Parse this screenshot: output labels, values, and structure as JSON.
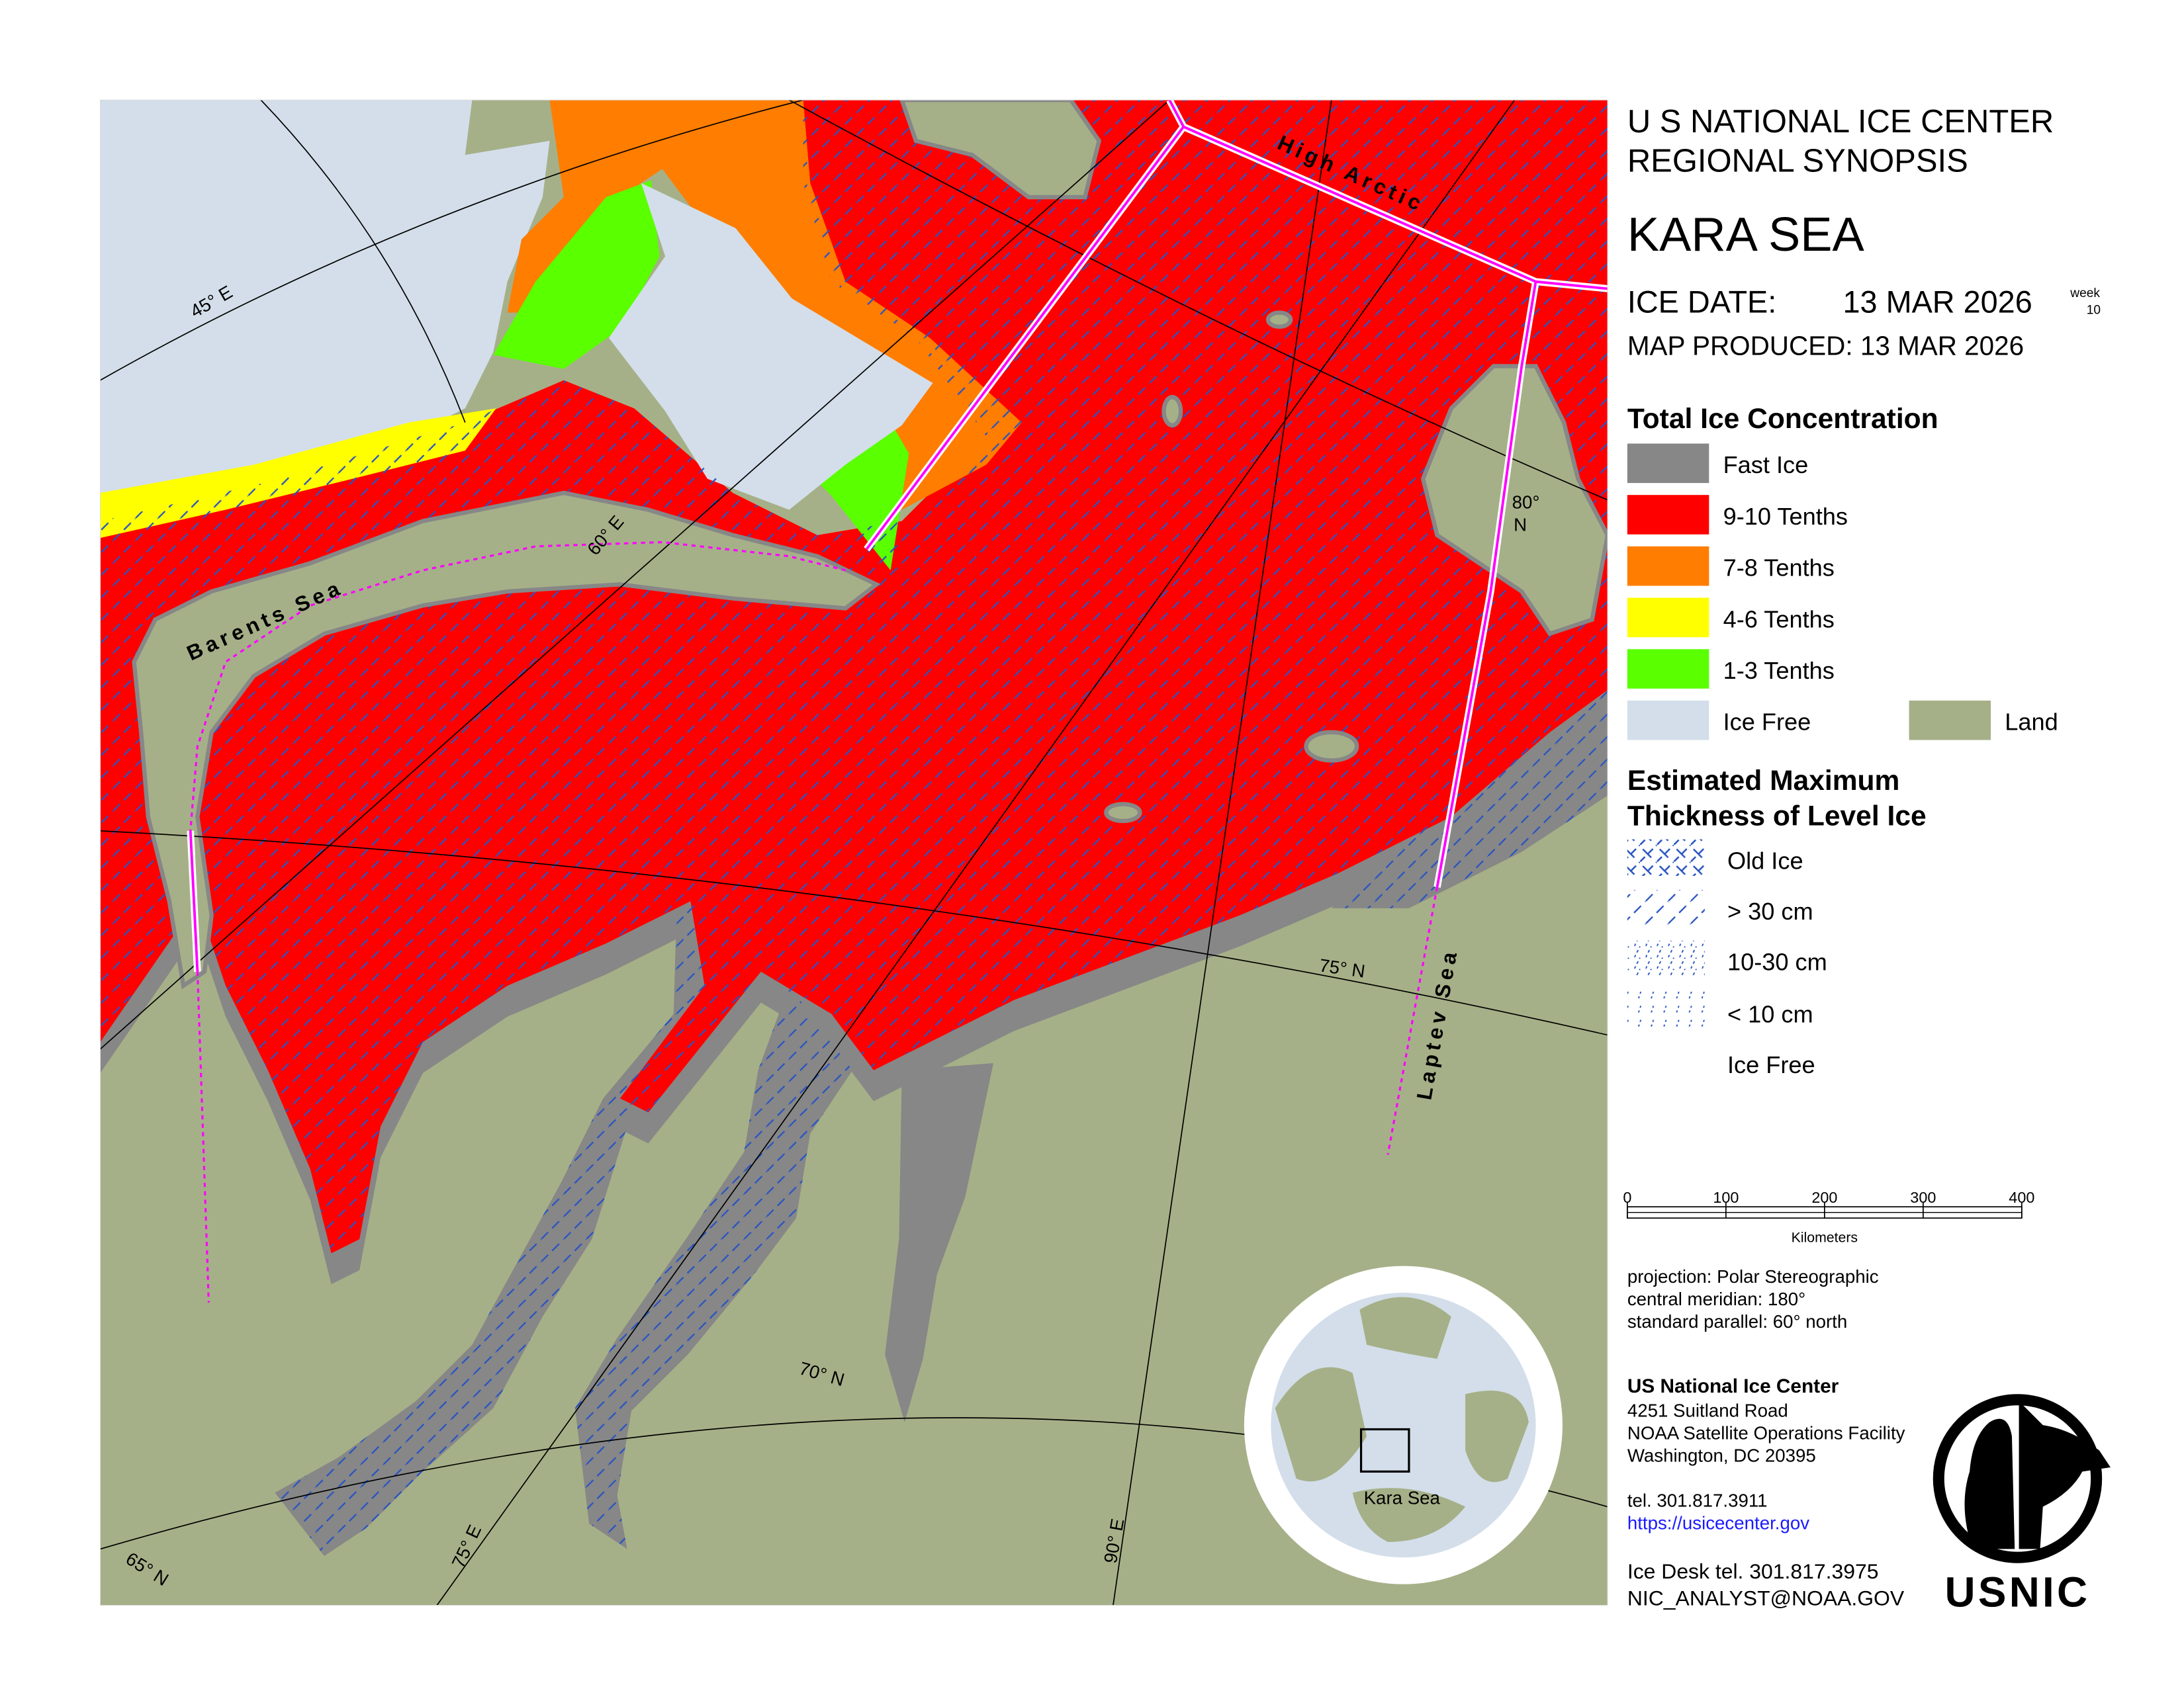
{
  "header": {
    "line1": "U S NATIONAL ICE CENTER",
    "line2": "REGIONAL SYNOPSIS",
    "region": "KARA SEA",
    "ice_date_label": "ICE DATE:",
    "ice_date": "13 MAR 2026",
    "week_label": "week",
    "week": 10,
    "map_produced": "MAP PRODUCED:  13 MAR 2026"
  },
  "concentration_legend": {
    "title": "Total Ice Concentration",
    "items": [
      {
        "label": "Fast Ice",
        "color": "#878787"
      },
      {
        "label": "9-10 Tenths",
        "color": "#ff0000"
      },
      {
        "label": "7-8 Tenths",
        "color": "#ff7d00"
      },
      {
        "label": "4-6 Tenths",
        "color": "#ffff00"
      },
      {
        "label": "1-3 Tenths",
        "color": "#5aff00"
      },
      {
        "label": "Ice Free",
        "color": "#d3deea"
      },
      {
        "label": "Land",
        "color": "#a6b088"
      }
    ]
  },
  "thickness_legend": {
    "title_lines": [
      "Estimated Maximum",
      "Thickness of Level Ice"
    ],
    "items": [
      "Old Ice",
      "> 30 cm",
      "10-30 cm",
      "< 10 cm",
      "Ice Free"
    ]
  },
  "scale_bar": {
    "ticks": [
      0,
      100,
      200,
      300,
      400
    ],
    "unit": "Kilometers"
  },
  "projection": [
    "projection: Polar Stereographic",
    "central meridian: 180°",
    "standard parallel:  60° north"
  ],
  "contact": {
    "name": "US National Ice Center",
    "address": [
      "4251 Suitland Road",
      "NOAA Satellite Operations Facility",
      "Washington, DC  20395"
    ],
    "phone": "tel. 301.817.3911",
    "url": "https://usicecenter.gov",
    "ice_desk": "Ice Desk tel. 301.817.3975",
    "email": "NIC_ANALYST@NOAA.GOV"
  },
  "map_labels": {
    "seas": [
      "Barents Sea",
      "High Arctic",
      "Laptev Sea"
    ],
    "graticule": [
      "45° E",
      "60° E",
      "75° E",
      "90° E",
      "65° N",
      "70° N",
      "75° N"
    ],
    "graticule_80n": [
      "80°",
      "N"
    ]
  },
  "inset": {
    "label": "Kara Sea"
  },
  "logo": "USNIC"
}
